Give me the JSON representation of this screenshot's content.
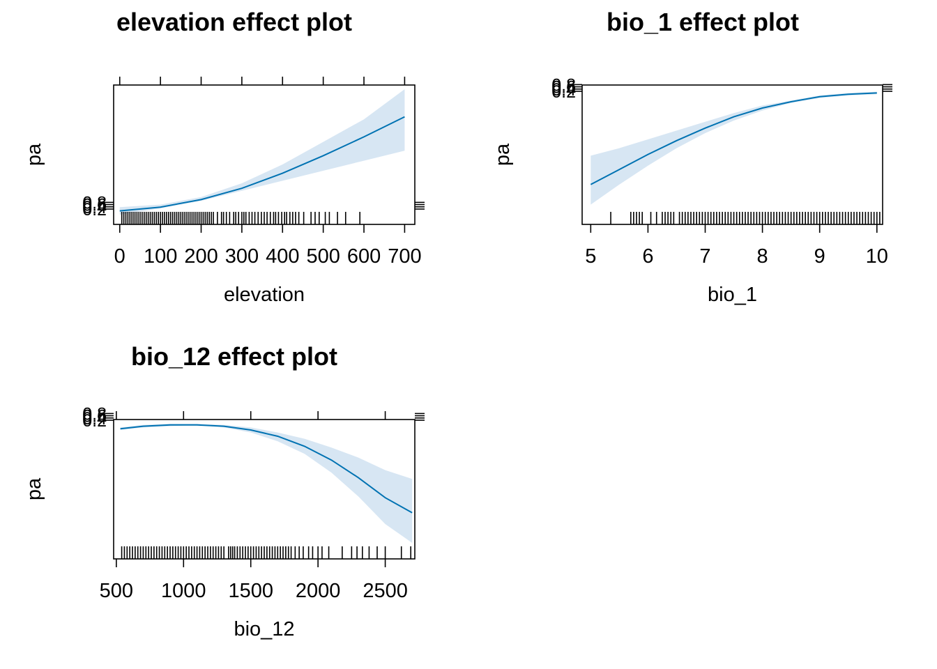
{
  "chart_data": [
    {
      "type": "line",
      "title": "elevation effect plot",
      "xlabel": "elevation",
      "ylabel": "pa",
      "xlim": [
        -15,
        725
      ],
      "ylim": [
        0,
        1
      ],
      "x_ticks": [
        0,
        100,
        200,
        300,
        400,
        500,
        600,
        700
      ],
      "y_tick_labels": [
        "0.2",
        "0.4",
        "0.6",
        "0.8"
      ],
      "line_color": "#0072b2",
      "band_color": "#d7e6f3",
      "fit": {
        "x": [
          0,
          100,
          200,
          300,
          400,
          500,
          600,
          700
        ],
        "y": [
          0.03,
          0.06,
          0.12,
          0.21,
          0.33,
          0.47,
          0.62,
          0.78
        ],
        "lower": [
          0.0,
          0.05,
          0.11,
          0.19,
          0.27,
          0.35,
          0.43,
          0.51
        ],
        "upper": [
          0.06,
          0.08,
          0.14,
          0.25,
          0.4,
          0.58,
          0.76,
          1.0
        ]
      },
      "rug": [
        5,
        10,
        15,
        20,
        25,
        30,
        35,
        40,
        45,
        50,
        55,
        60,
        65,
        70,
        75,
        80,
        85,
        90,
        95,
        100,
        105,
        110,
        115,
        120,
        125,
        130,
        135,
        140,
        145,
        150,
        155,
        160,
        165,
        170,
        175,
        180,
        185,
        190,
        195,
        200,
        205,
        210,
        215,
        220,
        225,
        230,
        240,
        250,
        255,
        262,
        270,
        280,
        285,
        292,
        300,
        305,
        310,
        318,
        325,
        332,
        340,
        348,
        355,
        362,
        370,
        378,
        383,
        390,
        398,
        405,
        410,
        418,
        425,
        432,
        440,
        452,
        470,
        480,
        490,
        505,
        515,
        535,
        555,
        590
      ]
    },
    {
      "type": "line",
      "title": "bio_1 effect plot",
      "xlabel": "bio_1",
      "ylabel": "pa",
      "xlim": [
        4.85,
        10.1
      ],
      "ylim": [
        0,
        1
      ],
      "x_ticks": [
        5,
        6,
        7,
        8,
        9,
        10
      ],
      "y_tick_labels": [
        "0.2",
        "0.4",
        "0.6",
        "0.8"
      ],
      "line_color": "#0072b2",
      "band_color": "#d7e6f3",
      "fit": {
        "x": [
          5,
          5.5,
          6,
          6.5,
          7,
          7.5,
          8,
          8.5,
          9,
          9.5,
          10
        ],
        "y": [
          0.24,
          0.36,
          0.48,
          0.59,
          0.69,
          0.78,
          0.85,
          0.9,
          0.94,
          0.96,
          0.97
        ],
        "lower": [
          0.08,
          0.24,
          0.39,
          0.53,
          0.65,
          0.75,
          0.83,
          0.89,
          0.93,
          0.95,
          0.96
        ],
        "upper": [
          0.47,
          0.53,
          0.6,
          0.67,
          0.74,
          0.81,
          0.87,
          0.91,
          0.95,
          0.97,
          0.98
        ]
      },
      "rug": [
        5.35,
        5.7,
        5.75,
        5.8,
        5.85,
        5.9,
        6.05,
        6.15,
        6.25,
        6.3,
        6.35,
        6.4,
        6.45,
        6.55,
        6.6,
        6.65,
        6.7,
        6.75,
        6.8,
        6.85,
        6.9,
        6.95,
        7.0,
        7.05,
        7.1,
        7.15,
        7.2,
        7.25,
        7.3,
        7.35,
        7.4,
        7.45,
        7.5,
        7.55,
        7.6,
        7.65,
        7.7,
        7.75,
        7.8,
        7.85,
        7.9,
        7.95,
        8.0,
        8.05,
        8.1,
        8.15,
        8.2,
        8.25,
        8.3,
        8.35,
        8.4,
        8.45,
        8.5,
        8.55,
        8.6,
        8.65,
        8.7,
        8.75,
        8.8,
        8.85,
        8.9,
        8.95,
        9.0,
        9.05,
        9.1,
        9.15,
        9.2,
        9.25,
        9.3,
        9.35,
        9.4,
        9.45,
        9.5,
        9.55,
        9.6,
        9.65,
        9.7,
        9.75,
        9.8,
        9.85,
        9.9,
        9.95,
        10.0,
        10.05
      ]
    },
    {
      "type": "line",
      "title": "bio_12 effect plot",
      "xlabel": "bio_12",
      "ylabel": "pa",
      "xlim": [
        480,
        2720
      ],
      "ylim": [
        0,
        1
      ],
      "x_ticks": [
        500,
        1000,
        1500,
        2000,
        2500
      ],
      "y_tick_labels": [
        "0.2",
        "0.4",
        "0.6",
        "0.8"
      ],
      "line_color": "#0072b2",
      "band_color": "#d7e6f3",
      "fit": {
        "x": [
          530,
          700,
          900,
          1100,
          1300,
          1500,
          1700,
          1900,
          2100,
          2300,
          2500,
          2700
        ],
        "y": [
          0.96,
          0.98,
          0.99,
          0.99,
          0.98,
          0.95,
          0.9,
          0.82,
          0.71,
          0.57,
          0.41,
          0.29
        ],
        "lower": [
          0.95,
          0.97,
          0.98,
          0.99,
          0.97,
          0.93,
          0.86,
          0.76,
          0.61,
          0.42,
          0.2,
          0.05
        ],
        "upper": [
          0.97,
          0.99,
          1.0,
          1.0,
          0.99,
          0.97,
          0.93,
          0.88,
          0.81,
          0.73,
          0.63,
          0.56
        ]
      },
      "rug": [
        540,
        560,
        580,
        600,
        620,
        640,
        660,
        680,
        700,
        720,
        740,
        760,
        780,
        800,
        820,
        840,
        860,
        880,
        900,
        920,
        940,
        960,
        980,
        1000,
        1020,
        1040,
        1060,
        1080,
        1100,
        1120,
        1140,
        1160,
        1180,
        1200,
        1220,
        1240,
        1260,
        1280,
        1300,
        1335,
        1350,
        1365,
        1380,
        1400,
        1420,
        1440,
        1460,
        1480,
        1500,
        1520,
        1540,
        1560,
        1580,
        1600,
        1620,
        1640,
        1660,
        1680,
        1700,
        1720,
        1740,
        1760,
        1780,
        1800,
        1830,
        1860,
        1890,
        1930,
        1960,
        2000,
        2030,
        2080,
        2180,
        2250,
        2290,
        2330,
        2380,
        2440,
        2500,
        2620,
        2690
      ]
    }
  ]
}
